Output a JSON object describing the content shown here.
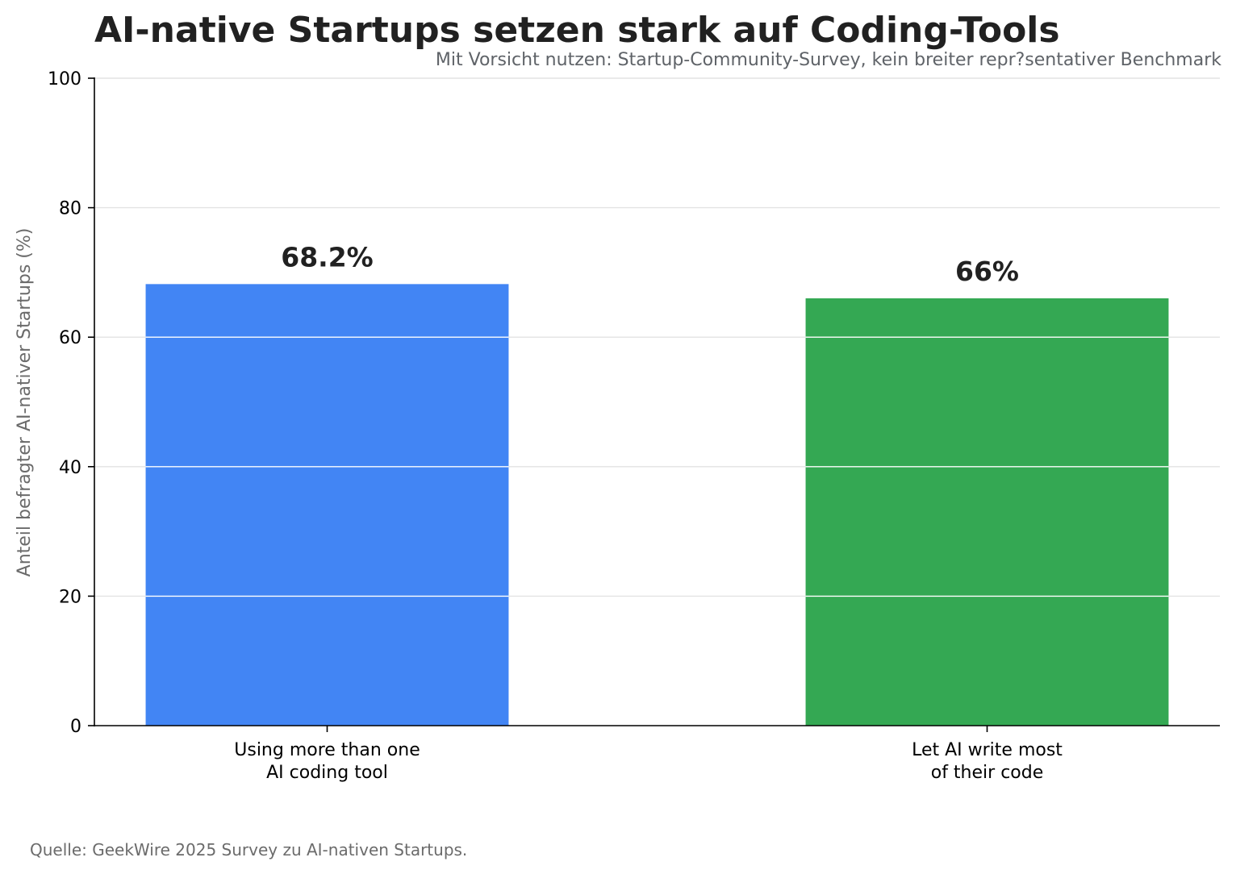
{
  "chart_data": {
    "type": "bar",
    "title": "AI-native Startups setzen stark auf Coding-Tools",
    "subtitle": "Mit Vorsicht nutzen: Startup-Community-Survey, kein breiter repr?sentativer Benchmark",
    "xlabel": "",
    "ylabel": "Anteil befragter AI-nativer Startups (%)",
    "ylim": [
      0,
      100
    ],
    "yticks": [
      0,
      20,
      40,
      60,
      80,
      100
    ],
    "grid": "horizontal",
    "categories": [
      [
        "Using more than one",
        "AI coding tool"
      ],
      [
        "Let AI write most",
        "of their code"
      ]
    ],
    "values": [
      68.2,
      66
    ],
    "data_labels": [
      "68.2%",
      "66%"
    ],
    "colors": [
      "#4285f4",
      "#34a853"
    ],
    "source": "Quelle: GeekWire 2025 Survey zu AI-nativen Startups."
  }
}
